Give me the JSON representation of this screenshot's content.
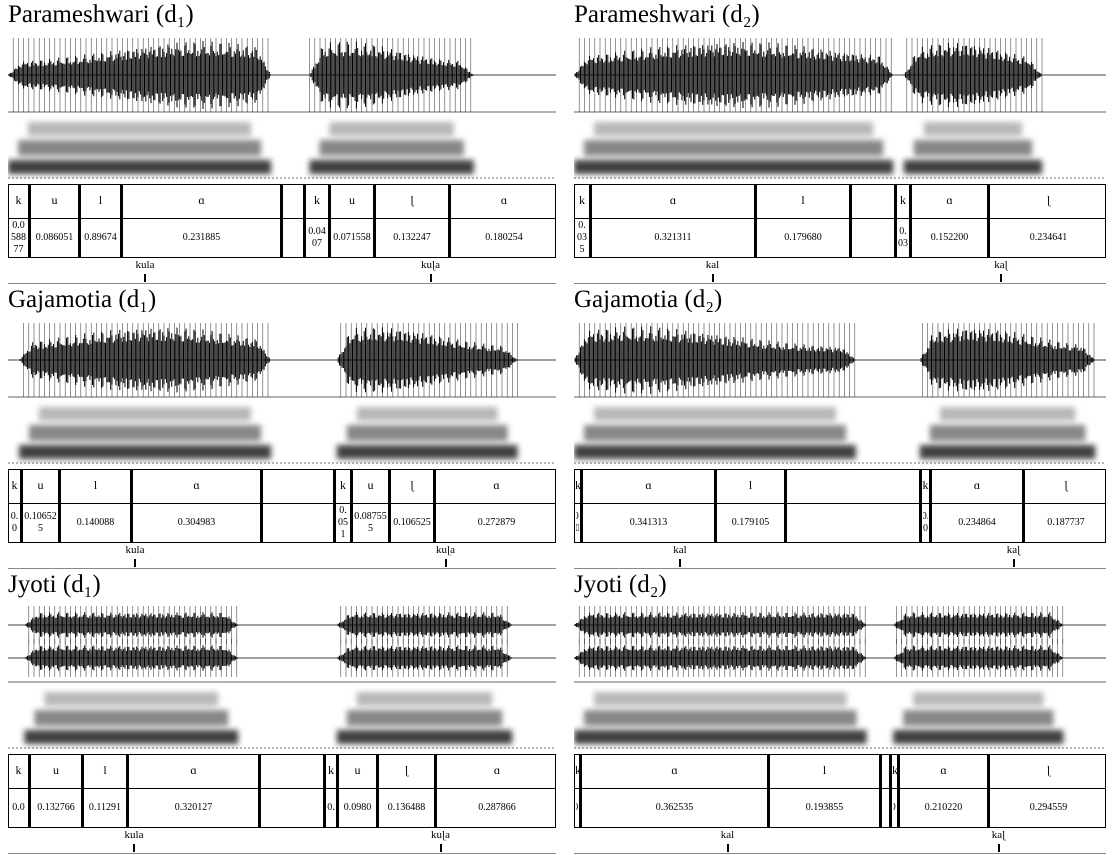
{
  "panels": [
    {
      "title": "Parameshwari (d₁)",
      "words": [
        {
          "word": "kula",
          "segments": [
            {
              "label": "k",
              "duration": "0.058877"
            },
            {
              "label": "u",
              "duration": "0.086051"
            },
            {
              "label": "l",
              "duration": "0.89674"
            },
            {
              "label": "ɑ",
              "duration": "0.231885"
            }
          ]
        },
        {
          "word": "kuɭa",
          "segments": [
            {
              "label": "k",
              "duration": "0.0407"
            },
            {
              "label": "u",
              "duration": "0.071558"
            },
            {
              "label": "ɭ",
              "duration": "0.132247"
            },
            {
              "label": "ɑ",
              "duration": "0.180254"
            }
          ]
        }
      ]
    },
    {
      "title": "Parameshwari (d₂)",
      "words": [
        {
          "word": "kal",
          "segments": [
            {
              "label": "k",
              "duration": "0.035"
            },
            {
              "label": "ɑ",
              "duration": "0.321311"
            },
            {
              "label": "l",
              "duration": "0.179680"
            }
          ]
        },
        {
          "word": "kaɭ",
          "segments": [
            {
              "label": "k",
              "duration": "0.03"
            },
            {
              "label": "ɑ",
              "duration": "0.152200"
            },
            {
              "label": "ɭ",
              "duration": "0.234641"
            }
          ]
        }
      ]
    },
    {
      "title": "Gajamotia (d₁)",
      "words": [
        {
          "word": "kula",
          "segments": [
            {
              "label": "k",
              "duration": "0.0"
            },
            {
              "label": "u",
              "duration": "0.106525"
            },
            {
              "label": "l",
              "duration": "0.140088"
            },
            {
              "label": "ɑ",
              "duration": "0.304983"
            }
          ]
        },
        {
          "word": "kuɭa",
          "segments": [
            {
              "label": "k",
              "duration": "0.051"
            },
            {
              "label": "u",
              "duration": "0.087555"
            },
            {
              "label": "ɭ",
              "duration": "0.106525"
            },
            {
              "label": "ɑ",
              "duration": "0.272879"
            }
          ]
        }
      ]
    },
    {
      "title": "Gajamotia (d₂)",
      "words": [
        {
          "word": "kal",
          "segments": [
            {
              "label": "k",
              "duration": "0.0"
            },
            {
              "label": "ɑ",
              "duration": "0.341313"
            },
            {
              "label": "l",
              "duration": "0.179105"
            }
          ]
        },
        {
          "word": "kaɭ",
          "segments": [
            {
              "label": "k",
              "duration": "0.0"
            },
            {
              "label": "ɑ",
              "duration": "0.234864"
            },
            {
              "label": "ɭ",
              "duration": "0.187737"
            }
          ]
        }
      ]
    },
    {
      "title": "Jyoti (d₁)",
      "words": [
        {
          "word": "kula",
          "segments": [
            {
              "label": "k",
              "duration": "0.0"
            },
            {
              "label": "u",
              "duration": "0.132766"
            },
            {
              "label": "l",
              "duration": "0.11291"
            },
            {
              "label": "ɑ",
              "duration": "0.320127"
            }
          ]
        },
        {
          "word": "kuɭa",
          "segments": [
            {
              "label": "k",
              "duration": "0."
            },
            {
              "label": "u",
              "duration": "0.0980"
            },
            {
              "label": "ɭ",
              "duration": "0.136488"
            },
            {
              "label": "ɑ",
              "duration": "0.287866"
            }
          ]
        }
      ]
    },
    {
      "title": "Jyoti (d₂)",
      "words": [
        {
          "word": "kal",
          "segments": [
            {
              "label": "k",
              "duration": "0."
            },
            {
              "label": "ɑ",
              "duration": "0.362535"
            },
            {
              "label": "l",
              "duration": "0.193855"
            }
          ]
        },
        {
          "word": "kaɭ",
          "segments": [
            {
              "label": "k",
              "duration": "0."
            },
            {
              "label": "ɑ",
              "duration": "0.210220"
            },
            {
              "label": "ɭ",
              "duration": "0.294559"
            }
          ]
        }
      ]
    }
  ]
}
